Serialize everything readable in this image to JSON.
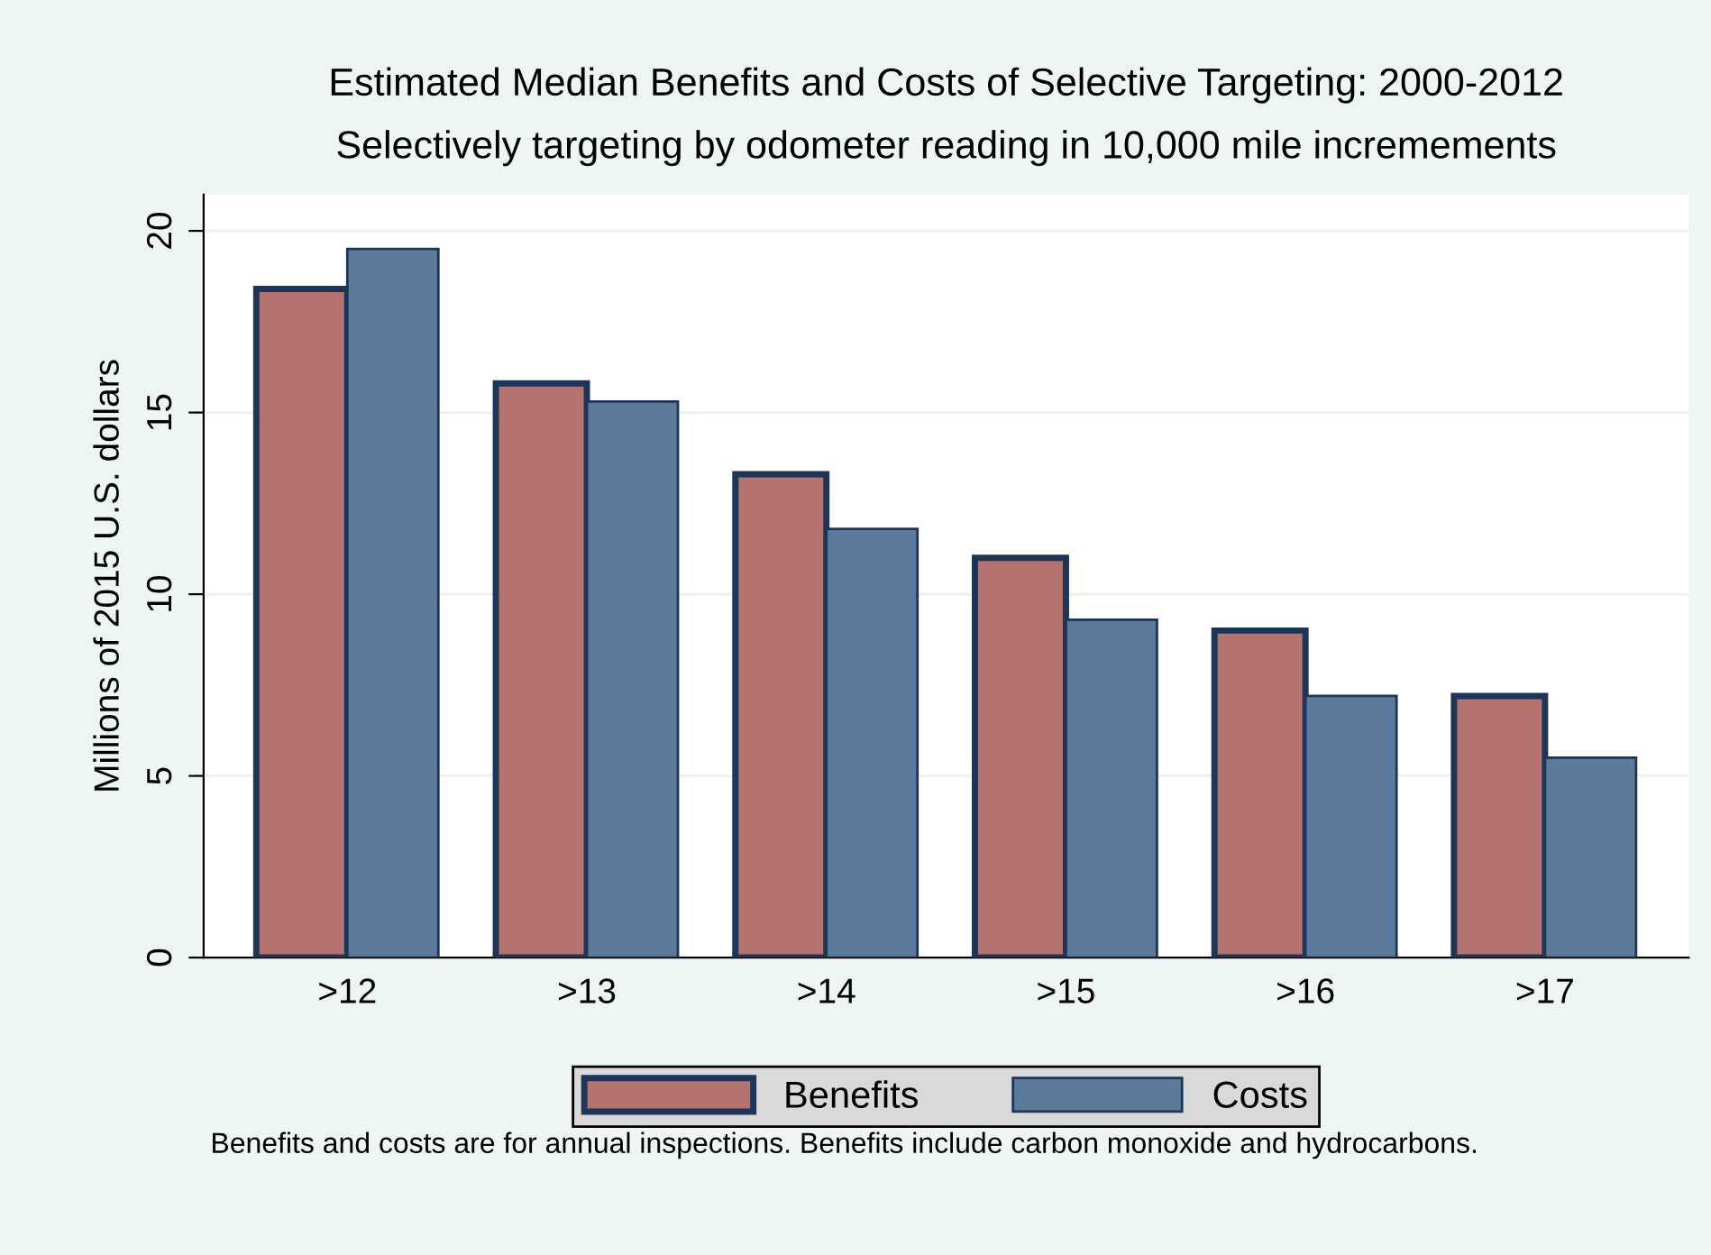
{
  "chart_data": {
    "type": "bar",
    "title": "Estimated Median Benefits and Costs of Selective Targeting: 2000-2012",
    "subtitle": "Selectively targeting by odometer reading in 10,000 mile incremements",
    "ylabel": "Millions of 2015 U.S. dollars",
    "categories": [
      ">12",
      ">13",
      ">14",
      ">15",
      ">16",
      ">17"
    ],
    "series": [
      {
        "name": "Benefits",
        "color": "#b57370",
        "values": [
          18.4,
          15.8,
          13.3,
          11.0,
          9.0,
          7.2
        ]
      },
      {
        "name": "Costs",
        "color": "#5b7a9c",
        "values": [
          19.5,
          15.3,
          11.8,
          9.3,
          7.2,
          5.5
        ]
      }
    ],
    "ylim": [
      0,
      21
    ],
    "yticks": [
      0,
      5,
      10,
      15,
      20
    ],
    "grid": "y",
    "legend": "bottom",
    "annotations": [
      "Benefits and costs are for annual inspections. Benefits include carbon monoxide and hydrocarbons."
    ]
  }
}
